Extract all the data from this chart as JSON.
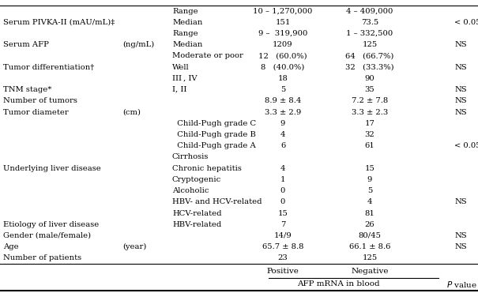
{
  "header_group": "AFP mRNA in blood",
  "col_positive": "Positive",
  "col_negative": "Negative",
  "bg_color": "#ffffff",
  "text_color": "#000000",
  "font_size": 7.2,
  "rows": [
    {
      "c1": "Number of patients",
      "unit": "",
      "c2": "",
      "c3": "23",
      "c4": "125",
      "c5": ""
    },
    {
      "c1": "Age",
      "unit": "(year)",
      "c2": "",
      "c3": "65.7 ± 8.8",
      "c4": "66.1 ± 8.6",
      "c5": "NS"
    },
    {
      "c1": "Gender (male/female)",
      "unit": "",
      "c2": "",
      "c3": "14/9",
      "c4": "80/45",
      "c5": "NS"
    },
    {
      "c1": "Etiology of liver disease",
      "unit": "",
      "c2": "HBV-related",
      "c3": "7",
      "c4": "26",
      "c5": ""
    },
    {
      "c1": "",
      "unit": "",
      "c2": "HCV-related",
      "c3": "15",
      "c4": "81",
      "c5": ""
    },
    {
      "c1": "",
      "unit": "",
      "c2": "HBV- and HCV-related",
      "c3": "0",
      "c4": "4",
      "c5": "NS"
    },
    {
      "c1": "",
      "unit": "",
      "c2": "Alcoholic",
      "c3": "0",
      "c4": "5",
      "c5": ""
    },
    {
      "c1": "",
      "unit": "",
      "c2": "Cryptogenic",
      "c3": "1",
      "c4": "9",
      "c5": ""
    },
    {
      "c1": "Underlying liver disease",
      "unit": "",
      "c2": "Chronic hepatitis",
      "c3": "4",
      "c4": "15",
      "c5": ""
    },
    {
      "c1": "",
      "unit": "",
      "c2": "Cirrhosis",
      "c3": "",
      "c4": "",
      "c5": ""
    },
    {
      "c1": "",
      "unit": "",
      "c2": "  Child-Pugh grade A",
      "c3": "6",
      "c4": "61",
      "c5": "< 0.05"
    },
    {
      "c1": "",
      "unit": "",
      "c2": "  Child-Pugh grade B",
      "c3": "4",
      "c4": "32",
      "c5": ""
    },
    {
      "c1": "",
      "unit": "",
      "c2": "  Child-Pugh grade C",
      "c3": "9",
      "c4": "17",
      "c5": ""
    },
    {
      "c1": "Tumor diameter",
      "unit": "(cm)",
      "c2": "",
      "c3": "3.3 ± 2.9",
      "c4": "3.3 ± 2.3",
      "c5": "NS"
    },
    {
      "c1": "Number of tumors",
      "unit": "",
      "c2": "",
      "c3": "8.9 ± 8.4",
      "c4": "7.2 ± 7.8",
      "c5": "NS"
    },
    {
      "c1": "TNM stage*",
      "unit": "",
      "c2": "I, II",
      "c3": "5",
      "c4": "35",
      "c5": "NS"
    },
    {
      "c1": "",
      "unit": "",
      "c2": "III , IV",
      "c3": "18",
      "c4": "90",
      "c5": ""
    },
    {
      "c1": "Tumor differentiation†",
      "unit": "",
      "c2": "Well",
      "c3": "8   (40.0%)",
      "c4": "32   (33.3%)",
      "c5": "NS"
    },
    {
      "c1": "",
      "unit": "",
      "c2": "Moderate or poor",
      "c3": "12   (60.0%)",
      "c4": "64   (66.7%)",
      "c5": ""
    },
    {
      "c1": "Serum AFP",
      "unit": "(ng/mL)",
      "c2": "Median",
      "c3": "1209",
      "c4": "125",
      "c5": "NS"
    },
    {
      "c1": "",
      "unit": "",
      "c2": "Range",
      "c3": "9 –  319,900",
      "c4": "1 – 332,500",
      "c5": ""
    },
    {
      "c1": "Serum PIVKA-II (mAU/mL)‡",
      "unit": "",
      "c2": "Median",
      "c3": "151",
      "c4": "73.5",
      "c5": "< 0.05"
    },
    {
      "c1": "",
      "unit": "",
      "c2": "Range",
      "c3": "10 – 1,270,000",
      "c4": "4 – 409,000",
      "c5": ""
    }
  ]
}
